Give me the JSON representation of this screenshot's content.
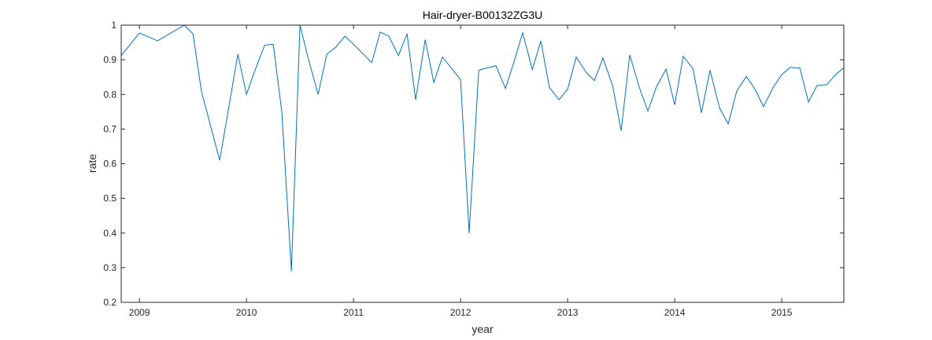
{
  "chart_data": {
    "type": "line",
    "title": "Hair-dryer-B00132ZG3U",
    "xlabel": "year",
    "ylabel": "rate",
    "xlim": [
      2008.83,
      2015.58
    ],
    "ylim": [
      0.2,
      1
    ],
    "xticks": [
      2009,
      2010,
      2011,
      2012,
      2013,
      2014,
      2015
    ],
    "yticks": [
      0.2,
      0.3,
      0.4,
      0.5,
      0.6,
      0.7,
      0.8,
      0.9,
      1
    ],
    "ytick_labels": [
      "0.2",
      "0.3",
      "0.4",
      "0.5",
      "0.6",
      "0.7",
      "0.8",
      "0.9",
      "1"
    ],
    "grid": false,
    "line_color": "#0072BD",
    "series": [
      {
        "x": [
          2008.83,
          2009.0,
          2009.17,
          2009.42,
          2009.5,
          2009.58,
          2009.75,
          2009.92,
          2010.0,
          2010.08,
          2010.17,
          2010.25,
          2010.33,
          2010.42,
          2010.5,
          2010.58,
          2010.67,
          2010.75,
          2010.83,
          2010.92,
          2011.0,
          2011.08,
          2011.17,
          2011.25,
          2011.33,
          2011.42,
          2011.5,
          2011.58,
          2011.67,
          2011.75,
          2011.83,
          2012.0,
          2012.08,
          2012.17,
          2012.33,
          2012.42,
          2012.5,
          2012.58,
          2012.67,
          2012.75,
          2012.83,
          2012.92,
          2013.0,
          2013.08,
          2013.17,
          2013.25,
          2013.33,
          2013.42,
          2013.5,
          2013.58,
          2013.67,
          2013.75,
          2013.83,
          2013.92,
          2014.0,
          2014.08,
          2014.17,
          2014.25,
          2014.33,
          2014.42,
          2014.5,
          2014.58,
          2014.67,
          2014.75,
          2014.83,
          2014.92,
          2015.0,
          2015.08,
          2015.17,
          2015.25,
          2015.33,
          2015.42,
          2015.5,
          2015.58
        ],
        "y": [
          0.912,
          0.977,
          0.955,
          1.0,
          0.975,
          0.808,
          0.61,
          0.916,
          0.8,
          0.87,
          0.942,
          0.945,
          0.75,
          0.29,
          1.0,
          0.9,
          0.8,
          0.916,
          0.935,
          0.968,
          0.945,
          0.92,
          0.892,
          0.98,
          0.968,
          0.912,
          0.975,
          0.785,
          0.958,
          0.834,
          0.908,
          0.843,
          0.4,
          0.87,
          0.883,
          0.817,
          0.895,
          0.978,
          0.872,
          0.954,
          0.82,
          0.785,
          0.815,
          0.908,
          0.865,
          0.84,
          0.905,
          0.826,
          0.695,
          0.914,
          0.82,
          0.752,
          0.822,
          0.873,
          0.77,
          0.91,
          0.875,
          0.747,
          0.87,
          0.76,
          0.715,
          0.81,
          0.852,
          0.815,
          0.765,
          0.82,
          0.857,
          0.878,
          0.876,
          0.778,
          0.826,
          0.828,
          0.856,
          0.877
        ]
      }
    ]
  }
}
